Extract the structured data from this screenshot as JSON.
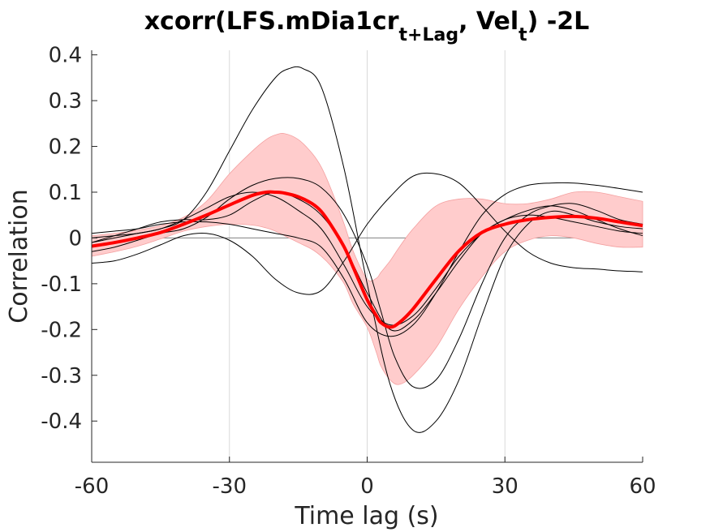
{
  "chart_data": {
    "type": "line",
    "title": {
      "prefix": "xcorr(LFS.mDia1cr",
      "sub1": "t+Lag",
      "middle": ", Vel",
      "sub2": "t",
      "suffix": ") -2L"
    },
    "xlabel": "Time lag (s)",
    "ylabel": "Correlation",
    "xlim": [
      -60,
      60
    ],
    "ylim": [
      -0.49,
      0.41
    ],
    "xticks": [
      -60,
      -30,
      0,
      30,
      60
    ],
    "xtick_labels": [
      "-60",
      "-30",
      "0",
      "30",
      "60"
    ],
    "yticks": [
      0.4,
      0.3,
      0.2,
      0.1,
      0,
      -0.1,
      -0.2,
      -0.3,
      -0.4
    ],
    "ytick_labels": [
      "0.4",
      "0.3",
      "0.2",
      "0.1",
      "0",
      "-0.1",
      "-0.2",
      "-0.3",
      "-0.4"
    ],
    "vertical_grid_at": [
      -30,
      0,
      30
    ],
    "zero_line": true,
    "colors": {
      "mean": "#ff0000",
      "band": "#ffcccc",
      "band_edge": "#f4a0a0",
      "individual": "#000000",
      "grid": "#d9d9d9",
      "zero_line": "#808080",
      "axis": "#262626"
    },
    "mean": {
      "x": [
        -60,
        -55,
        -50,
        -45,
        -40,
        -35,
        -30,
        -25,
        -22,
        -20,
        -18,
        -15,
        -12,
        -10,
        -8,
        -5,
        -3,
        0,
        2,
        3,
        5,
        7,
        10,
        15,
        20,
        25,
        30,
        35,
        40,
        45,
        50,
        55,
        60
      ],
      "y": [
        -0.018,
        -0.01,
        0.0,
        0.012,
        0.03,
        0.05,
        0.072,
        0.093,
        0.1,
        0.1,
        0.098,
        0.09,
        0.075,
        0.058,
        0.03,
        -0.02,
        -0.065,
        -0.135,
        -0.17,
        -0.185,
        -0.195,
        -0.185,
        -0.155,
        -0.09,
        -0.028,
        0.012,
        0.03,
        0.04,
        0.045,
        0.047,
        0.043,
        0.035,
        0.027
      ]
    },
    "band": {
      "x": [
        -60,
        -55,
        -50,
        -45,
        -40,
        -35,
        -30,
        -25,
        -22,
        -20,
        -18,
        -15,
        -12,
        -10,
        -8,
        -5,
        -3,
        0,
        2,
        3,
        5,
        7,
        10,
        15,
        20,
        25,
        30,
        35,
        40,
        45,
        50,
        55,
        60
      ],
      "upper": [
        0.005,
        0.01,
        0.017,
        0.027,
        0.045,
        0.08,
        0.14,
        0.19,
        0.215,
        0.225,
        0.228,
        0.215,
        0.185,
        0.155,
        0.11,
        0.03,
        -0.03,
        -0.09,
        -0.088,
        -0.075,
        -0.05,
        -0.02,
        0.02,
        0.07,
        0.085,
        0.085,
        0.075,
        0.075,
        0.085,
        0.1,
        0.1,
        0.09,
        0.08
      ],
      "lower": [
        -0.04,
        -0.03,
        -0.018,
        -0.002,
        0.015,
        0.025,
        0.03,
        0.028,
        0.022,
        0.015,
        0.005,
        -0.01,
        -0.025,
        -0.04,
        -0.06,
        -0.1,
        -0.145,
        -0.195,
        -0.25,
        -0.28,
        -0.31,
        -0.32,
        -0.3,
        -0.24,
        -0.155,
        -0.085,
        -0.03,
        -0.005,
        0.005,
        0.0,
        -0.012,
        -0.02,
        -0.02
      ]
    },
    "series": [
      {
        "x": [
          -60,
          -55,
          -50,
          -45,
          -40,
          -35,
          -30,
          -25,
          -20,
          -17,
          -14,
          -10,
          -5,
          0,
          5,
          10,
          15,
          20,
          25,
          30,
          35,
          40,
          45,
          50,
          55,
          60
        ],
        "y": [
          -0.01,
          0.0,
          0.01,
          0.02,
          0.04,
          0.1,
          0.19,
          0.28,
          0.35,
          0.37,
          0.37,
          0.33,
          0.15,
          -0.1,
          -0.32,
          -0.42,
          -0.4,
          -0.31,
          -0.17,
          -0.04,
          0.03,
          0.058,
          0.05,
          0.035,
          0.025,
          0.02
        ]
      },
      {
        "x": [
          -60,
          -55,
          -50,
          -45,
          -40,
          -35,
          -30,
          -25,
          -20,
          -15,
          -10,
          -5,
          0,
          5,
          10,
          15,
          20,
          25,
          30,
          35,
          40,
          45,
          50,
          55,
          60
        ],
        "y": [
          -0.055,
          -0.05,
          -0.035,
          -0.015,
          0.005,
          0.01,
          -0.005,
          -0.04,
          -0.09,
          -0.12,
          -0.115,
          -0.05,
          0.03,
          0.09,
          0.135,
          0.14,
          0.12,
          0.07,
          0.015,
          -0.03,
          -0.055,
          -0.065,
          -0.068,
          -0.072,
          -0.074
        ]
      },
      {
        "x": [
          -60,
          -55,
          -50,
          -45,
          -40,
          -35,
          -30,
          -25,
          -20,
          -15,
          -10,
          -5,
          0,
          3,
          6,
          10,
          15,
          20,
          25,
          30,
          35,
          40,
          45,
          50,
          55,
          60
        ],
        "y": [
          -0.03,
          -0.02,
          -0.005,
          0.01,
          0.02,
          0.045,
          0.085,
          0.115,
          0.13,
          0.13,
          0.11,
          0.05,
          -0.06,
          -0.16,
          -0.26,
          -0.325,
          -0.31,
          -0.22,
          -0.1,
          0.0,
          0.05,
          0.07,
          0.075,
          0.06,
          0.04,
          0.03
        ]
      },
      {
        "x": [
          -60,
          -55,
          -50,
          -45,
          -40,
          -35,
          -30,
          -25,
          -20,
          -15,
          -10,
          -5,
          0,
          5,
          10,
          15,
          20,
          25,
          30,
          35,
          40,
          45,
          50,
          55,
          60
        ],
        "y": [
          0.01,
          0.015,
          0.02,
          0.03,
          0.035,
          0.035,
          0.03,
          0.02,
          0.01,
          0.0,
          -0.02,
          -0.09,
          -0.185,
          -0.215,
          -0.19,
          -0.12,
          -0.03,
          0.05,
          0.095,
          0.115,
          0.12,
          0.12,
          0.115,
          0.108,
          0.1
        ]
      },
      {
        "x": [
          -60,
          -55,
          -50,
          -45,
          -40,
          -35,
          -30,
          -25,
          -20,
          -15,
          -10,
          -5,
          0,
          5,
          10,
          15,
          20,
          25,
          30,
          35,
          40,
          45,
          50,
          55,
          60
        ],
        "y": [
          -0.01,
          0.005,
          0.02,
          0.035,
          0.04,
          0.04,
          0.05,
          0.08,
          0.1,
          0.085,
          0.05,
          -0.02,
          -0.12,
          -0.2,
          -0.18,
          -0.12,
          -0.05,
          0.01,
          0.04,
          0.06,
          0.07,
          0.06,
          0.04,
          0.02,
          0.005
        ]
      },
      {
        "x": [
          -60,
          -55,
          -50,
          -45,
          -40,
          -35,
          -30,
          -25,
          -20,
          -15,
          -10,
          -5,
          0,
          5,
          10,
          15,
          20,
          25,
          30,
          35,
          40,
          45,
          50,
          55,
          60
        ],
        "y": [
          0.0,
          0.005,
          0.01,
          0.02,
          0.04,
          0.065,
          0.09,
          0.1,
          0.09,
          0.06,
          0.02,
          -0.06,
          -0.15,
          -0.19,
          -0.17,
          -0.11,
          -0.04,
          0.01,
          0.04,
          0.05,
          0.045,
          0.035,
          0.025,
          0.015,
          0.01
        ]
      }
    ]
  }
}
